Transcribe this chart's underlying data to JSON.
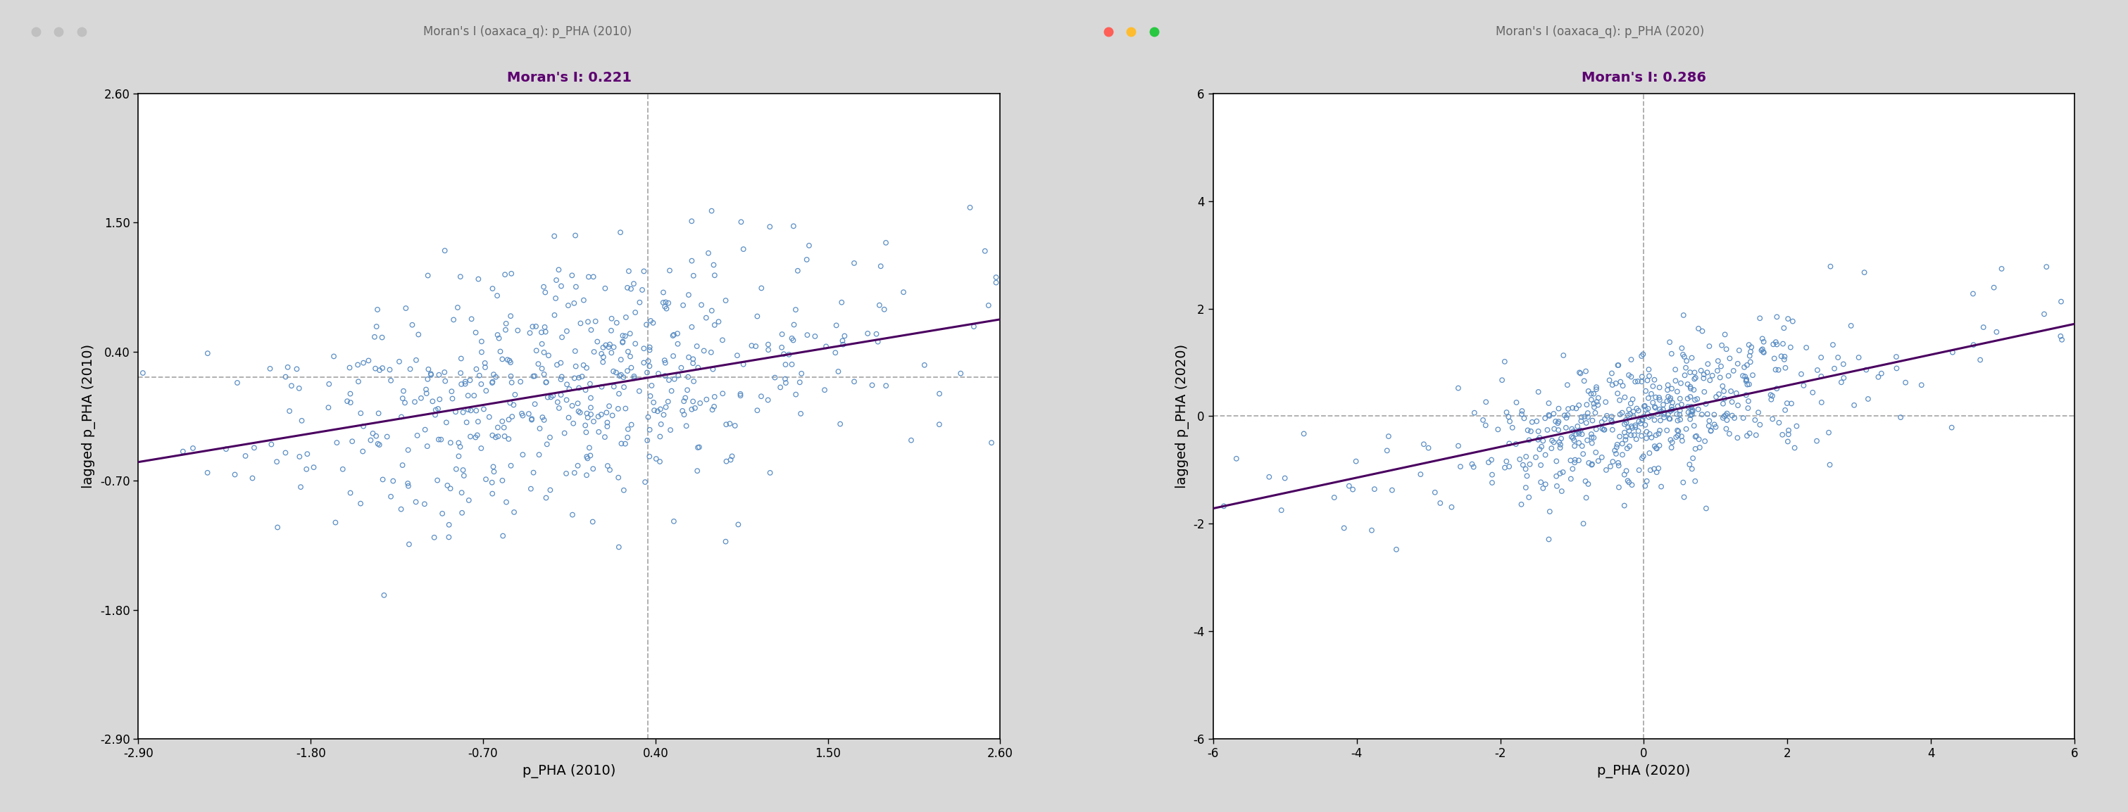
{
  "plot1": {
    "window_title": "Moran's I (oaxaca_q): p_PHA (2010)",
    "moran_label": "Moran's I: 0.221",
    "xlabel": "p_PHA (2010)",
    "ylabel": "lagged p_PHA (2010)",
    "xlim": [
      -2.9,
      2.6
    ],
    "ylim": [
      -2.9,
      2.6
    ],
    "xticks": [
      -2.9,
      -1.8,
      -0.7,
      0.4,
      1.5,
      2.6
    ],
    "yticks": [
      -2.9,
      -1.8,
      -0.7,
      0.4,
      1.5,
      2.6
    ],
    "vline_x": 0.35,
    "hline_y": 0.18,
    "slope": 0.221,
    "intercept": 0.1,
    "n_points": 500,
    "x_center": -0.1,
    "y_center": 0.1,
    "x_std": 0.9,
    "y_noise": 0.52,
    "dot_colored": false
  },
  "plot2": {
    "window_title": "Moran's I (oaxaca_q): p_PHA (2020)",
    "moran_label": "Moran's I: 0.286",
    "xlabel": "p_PHA (2020)",
    "ylabel": "lagged p_PHA (2020)",
    "xlim": [
      -6.0,
      6.0
    ],
    "ylim": [
      -6.0,
      6.0
    ],
    "xticks": [
      -6,
      -4,
      -2,
      0,
      2,
      4,
      6
    ],
    "yticks": [
      -6,
      -4,
      -2,
      0,
      2,
      4,
      6
    ],
    "vline_x": 0.0,
    "hline_y": 0.0,
    "slope": 0.286,
    "intercept": 0.0,
    "n_points": 500,
    "x_center": 0.0,
    "y_center": 0.0,
    "x_std": 1.2,
    "y_noise": 0.65,
    "dot_colored": true
  },
  "scatter_facecolor": "none",
  "scatter_edgecolor": "#5b8ec4",
  "scatter_linewidth": 0.9,
  "scatter_size": 22,
  "line_color": "#4a0060",
  "dashed_color": "#aaaaaa",
  "window_bg": "#d8d8d8",
  "plot_bg": "#ffffff",
  "titlebar_bg": "#d2d2d2",
  "moran_color": "#5c0070",
  "title_color": "#666666",
  "dot_colors_active": [
    "#ff5f57",
    "#febc2e",
    "#28c840"
  ],
  "dot_colors_inactive": [
    "#c0c0c0",
    "#c0c0c0",
    "#c0c0c0"
  ]
}
